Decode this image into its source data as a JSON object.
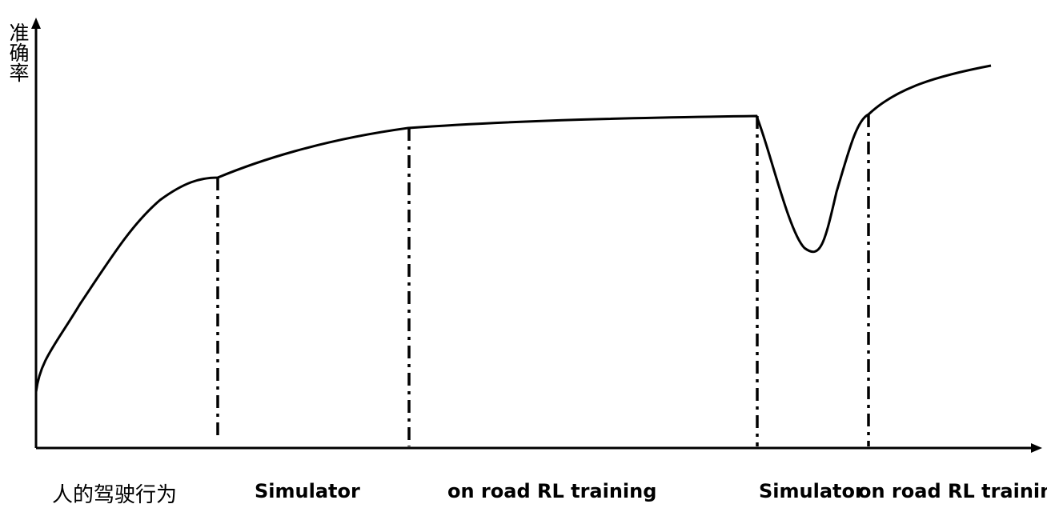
{
  "y_axis_label": "准确率",
  "stage_labels": {
    "human": "人的驾驶行为",
    "sim1": "Simulator",
    "road1": "on road RL training",
    "sim2": "Simulator",
    "road2": "on road RL training"
  }
}
